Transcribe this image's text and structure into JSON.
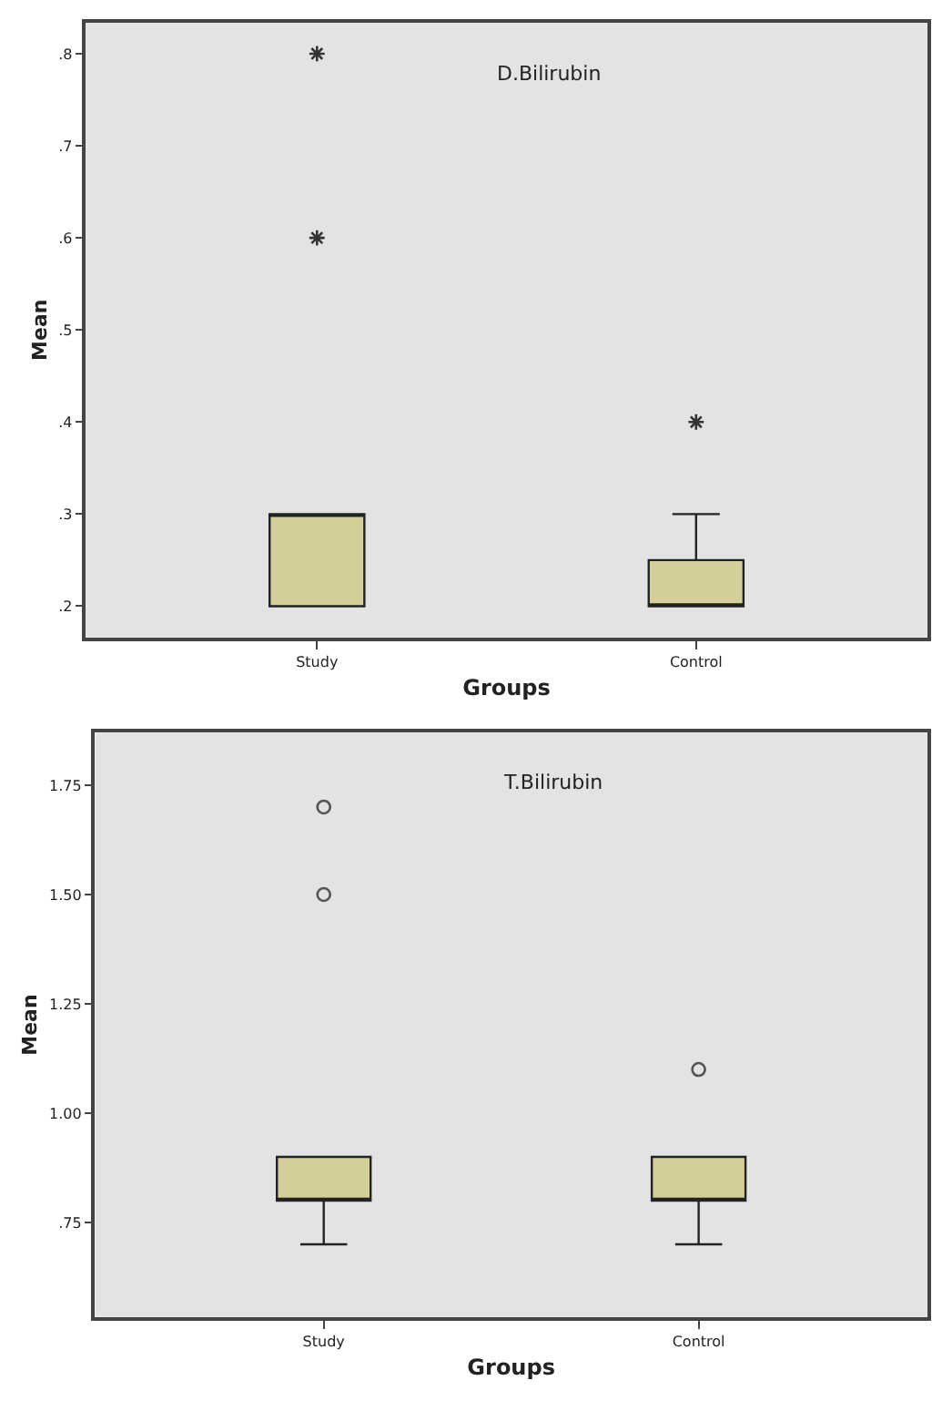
{
  "chart_data": [
    {
      "type": "box",
      "title": "D.Bilirubin",
      "xlabel": "Groups",
      "ylabel": "Mean",
      "categories": [
        "Study",
        "Control"
      ],
      "color": "#d4cf9a",
      "marker": "star",
      "grid": false,
      "ylim": [
        0.166,
        0.834
      ],
      "yticks": [
        {
          "value": 0.2,
          "label": ".2"
        },
        {
          "value": 0.3,
          "label": ".3"
        },
        {
          "value": 0.4,
          "label": ".4"
        },
        {
          "value": 0.5,
          "label": ".5"
        },
        {
          "value": 0.6,
          "label": ".6"
        },
        {
          "value": 0.7,
          "label": ".7"
        },
        {
          "value": 0.8,
          "label": ".8"
        }
      ],
      "boxes": [
        {
          "low": 0.2,
          "q1": 0.2,
          "median": 0.3,
          "q3": 0.3,
          "high": 0.3,
          "outliers": [
            0.6,
            0.8
          ]
        },
        {
          "low": 0.2,
          "q1": 0.2,
          "median": 0.2,
          "q3": 0.25,
          "high": 0.3,
          "outliers": [
            0.4
          ]
        }
      ]
    },
    {
      "type": "box",
      "title": "T.Bilirubin",
      "xlabel": "Groups",
      "ylabel": "Mean",
      "categories": [
        "Study",
        "Control"
      ],
      "color": "#d4cf9a",
      "marker": "circle",
      "grid": false,
      "ylim": [
        0.534,
        1.87
      ],
      "yticks": [
        {
          "value": 0.75,
          "label": ".75"
        },
        {
          "value": 1.0,
          "label": "1.00"
        },
        1.25,
        {
          "value": 1.5,
          "label": "1.50"
        },
        1.75
      ],
      "boxes": [
        {
          "low": 0.7,
          "q1": 0.8,
          "median": 0.8,
          "q3": 0.9,
          "high": 0.9,
          "outliers": [
            1.5,
            1.7
          ]
        },
        {
          "low": 0.7,
          "q1": 0.8,
          "median": 0.8,
          "q3": 0.9,
          "high": 0.9,
          "outliers": [
            1.1
          ]
        }
      ]
    }
  ]
}
